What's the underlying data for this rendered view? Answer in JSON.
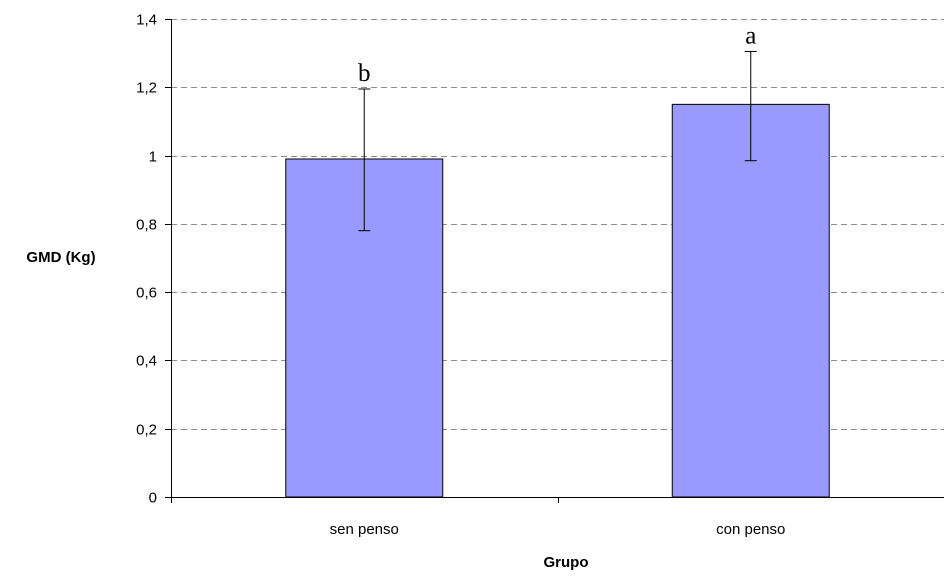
{
  "chart_data": {
    "type": "bar",
    "categories": [
      "sen penso",
      "con penso"
    ],
    "values": [
      0.99,
      1.15
    ],
    "error_bars": [
      {
        "lower": 0.78,
        "upper": 1.195
      },
      {
        "lower": 0.985,
        "upper": 1.305
      }
    ],
    "significance_labels": [
      "b",
      "a"
    ],
    "xlabel": "Grupo",
    "ylabel": "GMD (Kg)",
    "ylim": [
      0,
      1.4
    ],
    "yticks": [
      0,
      0.2,
      0.4,
      0.6,
      0.8,
      1,
      1.2,
      1.4
    ],
    "ytick_labels": [
      "0",
      "0,2",
      "0,4",
      "0,6",
      "0,8",
      "1",
      "1,2",
      "1,4"
    ],
    "grid": "horizontal dashed",
    "bar_color": "#9999FF",
    "bar_edge_color": "#000000"
  }
}
